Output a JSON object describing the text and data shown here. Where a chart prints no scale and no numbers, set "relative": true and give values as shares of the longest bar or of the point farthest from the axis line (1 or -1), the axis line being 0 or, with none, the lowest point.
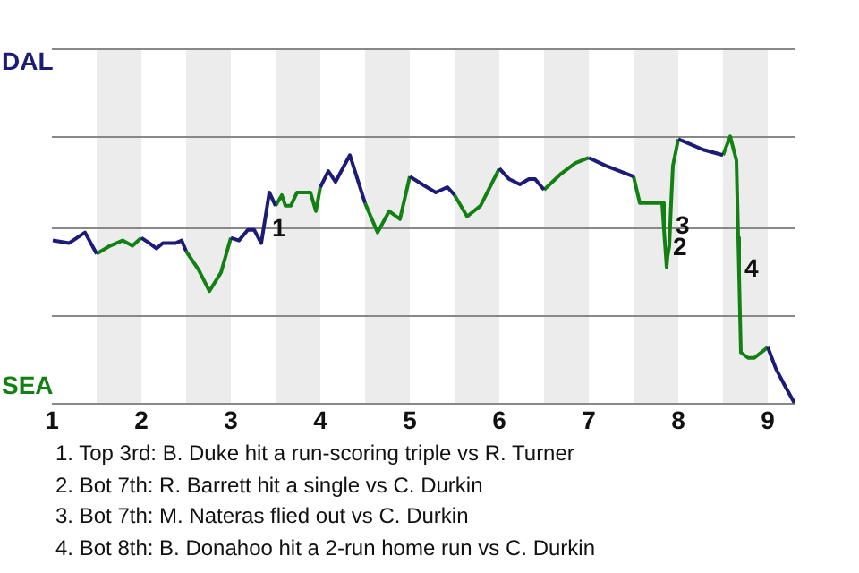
{
  "chart_data": {
    "type": "line",
    "relative": true,
    "x": [
      1.01,
      1.19,
      1.37,
      1.5,
      1.65,
      1.79,
      1.9,
      2,
      2.09,
      2.17,
      2.24,
      2.38,
      2.45,
      2.5,
      2.64,
      2.76,
      2.89,
      3,
      3.09,
      3.19,
      3.26,
      3.34,
      3.43,
      3.5,
      3.57,
      3.61,
      3.67,
      3.74,
      3.89,
      3.95,
      4,
      4.09,
      4.17,
      4.33,
      4.5,
      4.64,
      4.77,
      4.89,
      5,
      5.14,
      5.29,
      5.42,
      5.5,
      5.64,
      5.79,
      6,
      6.11,
      6.23,
      6.33,
      6.4,
      6.5,
      6.69,
      6.85,
      7,
      7.19,
      7.5,
      7.57,
      7.82,
      7.84,
      7.87,
      7.88,
      7.9,
      7.92,
      7.94,
      8,
      8.28,
      8.5,
      8.58,
      8.65,
      8.67,
      8.68,
      8.7,
      8.78,
      8.85,
      9,
      9.09,
      9.2,
      9.3
    ],
    "series": [
      {
        "color": "#1c1c78",
        "values": [
          0.61,
          0.6,
          0.64,
          0.56,
          null,
          null,
          null,
          0.62,
          0.6,
          0.58,
          0.6,
          0.6,
          0.61,
          0.57,
          null,
          null,
          null,
          0.62,
          0.61,
          0.65,
          0.65,
          0.6,
          0.79,
          0.74,
          null,
          null,
          null,
          null,
          null,
          null,
          0.81,
          0.87,
          0.83,
          0.93,
          0.75,
          null,
          null,
          null,
          0.85,
          0.82,
          0.79,
          0.81,
          0.78,
          null,
          null,
          0.88,
          0.84,
          0.82,
          0.84,
          0.84,
          0.8,
          null,
          null,
          0.92,
          0.89,
          0.85,
          null,
          null,
          null,
          null,
          null,
          null,
          null,
          null,
          0.99,
          0.95,
          0.93,
          null,
          null,
          null,
          null,
          null,
          null,
          null,
          0.21,
          0.13,
          0.06,
          0
        ]
      },
      {
        "color": "#138013",
        "values": [
          null,
          null,
          null,
          0.56,
          0.59,
          0.61,
          0.59,
          0.62,
          null,
          null,
          null,
          null,
          null,
          0.57,
          0.5,
          0.42,
          0.49,
          0.62,
          null,
          null,
          null,
          null,
          null,
          0.74,
          0.78,
          0.74,
          0.74,
          0.79,
          0.79,
          0.72,
          0.81,
          null,
          null,
          null,
          0.75,
          0.64,
          0.72,
          0.69,
          0.85,
          null,
          null,
          null,
          0.78,
          0.7,
          0.74,
          0.88,
          null,
          null,
          null,
          null,
          0.8,
          0.86,
          0.9,
          0.92,
          null,
          0.85,
          0.75,
          0.75,
          0.65,
          0.51,
          0.55,
          0.59,
          0.75,
          0.89,
          0.99,
          null,
          0.93,
          1,
          0.91,
          0.62,
          0.48,
          0.19,
          0.17,
          0.17,
          0.21,
          null,
          null,
          null
        ]
      }
    ],
    "xlim": [
      1,
      9.3
    ],
    "xticks": [
      1,
      2,
      3,
      4,
      5,
      6,
      7,
      8,
      9
    ],
    "legend": false,
    "marker": "none",
    "ref_lines": [
      {
        "axis": "y",
        "value": 0,
        "color": "#888888"
      },
      {
        "axis": "y",
        "value": 0.33,
        "color": "#888888"
      },
      {
        "axis": "y",
        "value": 0.66,
        "color": "#888888"
      },
      {
        "axis": "y",
        "value": 1,
        "color": "#888888"
      },
      {
        "axis": "y",
        "value": 1.33,
        "color": "#888888"
      }
    ],
    "bands": [
      {
        "axis": "x",
        "from": 1.5,
        "to": 2,
        "color": "#ececec"
      },
      {
        "axis": "x",
        "from": 2.5,
        "to": 3,
        "color": "#ececec"
      },
      {
        "axis": "x",
        "from": 3.5,
        "to": 4,
        "color": "#ececec"
      },
      {
        "axis": "x",
        "from": 4.5,
        "to": 5,
        "color": "#ececec"
      },
      {
        "axis": "x",
        "from": 5.5,
        "to": 6,
        "color": "#ececec"
      },
      {
        "axis": "x",
        "from": 6.5,
        "to": 7,
        "color": "#ececec"
      },
      {
        "axis": "x",
        "from": 7.5,
        "to": 8,
        "color": "#ececec"
      },
      {
        "axis": "x",
        "from": 8.5,
        "to": 9,
        "color": "#ececec"
      }
    ],
    "annotations": [
      {
        "text": "1",
        "x": 3.4,
        "y": 0.65
      },
      {
        "text": "2",
        "x": 7.88,
        "y": 0.58
      },
      {
        "text": "3",
        "x": 7.91,
        "y": 0.66
      },
      {
        "text": "4",
        "x": 8.68,
        "y": 0.5
      },
      "DAL",
      "SEA",
      "1. Top 3rd: B. Duke hit a run-scoring triple vs R. Turner",
      "2. Bot 7th: R. Barrett hit a single vs C. Durkin",
      "3. Bot 7th: M. Nateras flied out vs C. Durkin",
      "4. Bot 8th: B. Donahoo hit a 2-run home run vs C. Durkin"
    ]
  }
}
